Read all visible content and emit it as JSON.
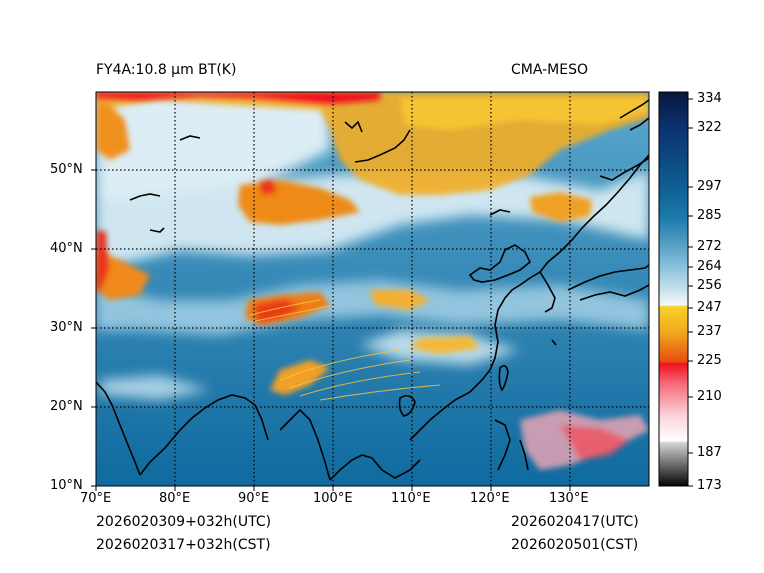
{
  "header": {
    "title": "FY4A:10.8 μm BT(K)",
    "source": "CMA-MESO"
  },
  "footer": {
    "init_utc": "2026020309+032h(UTC)",
    "init_cst": "2026020317+032h(CST)",
    "valid_utc": "2026020417(UTC)",
    "valid_cst": "2026020501(CST)"
  },
  "map": {
    "lon_range": [
      70,
      140
    ],
    "lat_range": [
      10,
      60
    ],
    "lon_ticks": [
      "70°E",
      "80°E",
      "90°E",
      "100°E",
      "110°E",
      "120°E",
      "130°E"
    ],
    "lat_ticks": [
      "10°N",
      "20°N",
      "30°N",
      "40°N",
      "50°N"
    ]
  },
  "colorbar": {
    "range": [
      173,
      337
    ],
    "ticks": [
      "334",
      "322",
      "297",
      "285",
      "272",
      "264",
      "256",
      "247",
      "237",
      "225",
      "210",
      "187",
      "173"
    ]
  },
  "colors": {
    "ocean": "#1a73a8",
    "land": "#4f9cc4",
    "cold_cloud": "#f2a81e",
    "very_cold": "#e8301e"
  }
}
